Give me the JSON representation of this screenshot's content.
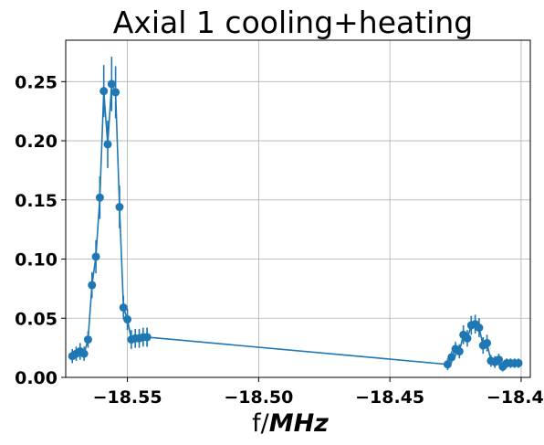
{
  "chart_data": {
    "type": "line",
    "title": "Axial 1 cooling+heating",
    "xlabel_prefix": "f/",
    "xlabel_unit": "MHz",
    "ylabel": "",
    "xlim": [
      -18.5735,
      -18.3965
    ],
    "ylim": [
      0.0,
      0.285
    ],
    "xticks": [
      -18.55,
      -18.5,
      -18.45,
      -18.4
    ],
    "xtick_labels": [
      "−18.55",
      "−18.50",
      "−18.45",
      "−18.40"
    ],
    "yticks": [
      0.0,
      0.05,
      0.1,
      0.15,
      0.2,
      0.25
    ],
    "ytick_labels": [
      "0.00",
      "0.05",
      "0.10",
      "0.15",
      "0.20",
      "0.25"
    ],
    "grid": true,
    "marker": "circle",
    "color": "#1f77b4",
    "series": [
      {
        "x": [
          -18.571,
          -18.5695,
          -18.568,
          -18.5665,
          -18.565,
          -18.5635,
          -18.562,
          -18.5605,
          -18.559,
          -18.5575,
          -18.556,
          -18.5545,
          -18.553,
          -18.5515,
          -18.55,
          -18.5485,
          -18.547,
          -18.5455,
          -18.544,
          -18.5425,
          -18.5425,
          -18.428,
          -18.4265,
          -18.425,
          -18.4235,
          -18.422,
          -18.4205,
          -18.419,
          -18.4175,
          -18.416,
          -18.4145,
          -18.413,
          -18.4115,
          -18.41,
          -18.4085,
          -18.407,
          -18.4055,
          -18.404,
          -18.4025,
          -18.401
        ],
        "y": [
          0.018,
          0.02,
          0.022,
          0.02,
          0.032,
          0.078,
          0.102,
          0.152,
          0.242,
          0.197,
          0.248,
          0.241,
          0.144,
          0.059,
          0.049,
          0.032,
          0.033,
          0.033,
          0.034,
          0.034,
          0.034,
          0.011,
          0.017,
          0.024,
          0.022,
          0.036,
          0.033,
          0.044,
          0.045,
          0.042,
          0.027,
          0.029,
          0.014,
          0.013,
          0.015,
          0.009,
          0.012,
          0.012,
          0.012,
          0.012
        ],
        "yerr": [
          0.006,
          0.006,
          0.007,
          0.006,
          0.007,
          0.011,
          0.014,
          0.018,
          0.022,
          0.02,
          0.023,
          0.022,
          0.018,
          0.01,
          0.009,
          0.008,
          0.008,
          0.008,
          0.008,
          0.008,
          0.008,
          0.005,
          0.005,
          0.006,
          0.006,
          0.008,
          0.007,
          0.008,
          0.008,
          0.008,
          0.007,
          0.007,
          0.005,
          0.005,
          0.005,
          0.004,
          0.004,
          0.004,
          0.004,
          0.004
        ]
      }
    ]
  }
}
